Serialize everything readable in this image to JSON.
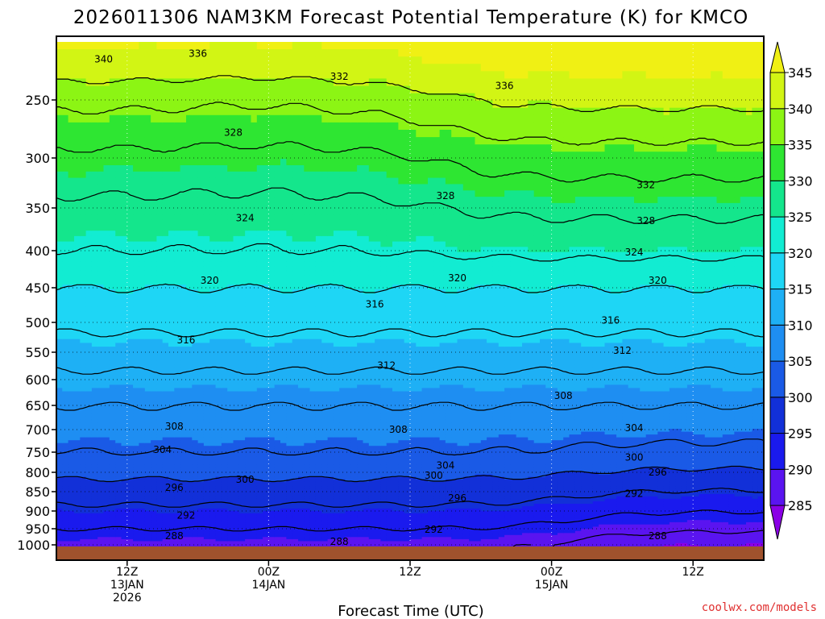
{
  "chart_data": {
    "type": "contour-timeheight",
    "title": "2026011306 NAM3KM Forecast Potential Temperature (K) for KMCO",
    "xlabel": "Forecast Time (UTC)",
    "ylabel": "",
    "y_ticks": [
      250,
      300,
      350,
      400,
      450,
      500,
      550,
      600,
      650,
      700,
      750,
      800,
      850,
      900,
      950,
      1000
    ],
    "x_ticks": [
      {
        "hour": 6,
        "label1": "12Z",
        "label2": "13JAN",
        "label3": "2026"
      },
      {
        "hour": 18,
        "label1": "00Z",
        "label2": "14JAN",
        "label3": ""
      },
      {
        "hour": 30,
        "label1": "12Z",
        "label2": "",
        "label3": ""
      },
      {
        "hour": 42,
        "label1": "00Z",
        "label2": "15JAN",
        "label3": ""
      },
      {
        "hour": 54,
        "label1": "12Z",
        "label2": "",
        "label3": ""
      }
    ],
    "xlim_hours": [
      0,
      60
    ],
    "ylim_hpa": [
      200,
      1020
    ],
    "colorbar": {
      "levels": [
        285,
        290,
        295,
        300,
        305,
        310,
        315,
        320,
        325,
        330,
        335,
        340,
        345
      ],
      "colors": [
        "#8a00e6",
        "#5a14f0",
        "#1a1aee",
        "#1230d8",
        "#1a5ae6",
        "#1e8ef2",
        "#1eb0f5",
        "#1ed6f5",
        "#12ecd2",
        "#14e68c",
        "#2ee632",
        "#8cf514",
        "#d2f514",
        "#f0f014"
      ]
    },
    "contour_levels": [
      288,
      292,
      296,
      300,
      304,
      308,
      312,
      316,
      320,
      324,
      328,
      332,
      336,
      340
    ],
    "contour_labels": [
      {
        "value": 340,
        "hour": 4,
        "p": 215
      },
      {
        "value": 336,
        "hour": 12,
        "p": 210
      },
      {
        "value": 332,
        "hour": 24,
        "p": 230
      },
      {
        "value": 336,
        "hour": 38,
        "p": 238
      },
      {
        "value": 328,
        "hour": 15,
        "p": 278
      },
      {
        "value": 328,
        "hour": 33,
        "p": 338
      },
      {
        "value": 332,
        "hour": 50,
        "p": 327
      },
      {
        "value": 328,
        "hour": 50,
        "p": 365
      },
      {
        "value": 324,
        "hour": 16,
        "p": 362
      },
      {
        "value": 324,
        "hour": 49,
        "p": 402
      },
      {
        "value": 320,
        "hour": 13,
        "p": 440
      },
      {
        "value": 320,
        "hour": 34,
        "p": 437
      },
      {
        "value": 320,
        "hour": 51,
        "p": 440
      },
      {
        "value": 316,
        "hour": 27,
        "p": 474
      },
      {
        "value": 316,
        "hour": 47,
        "p": 497
      },
      {
        "value": 316,
        "hour": 11,
        "p": 530
      },
      {
        "value": 312,
        "hour": 28,
        "p": 574
      },
      {
        "value": 312,
        "hour": 48,
        "p": 547
      },
      {
        "value": 308,
        "hour": 43,
        "p": 631
      },
      {
        "value": 308,
        "hour": 10,
        "p": 693
      },
      {
        "value": 308,
        "hour": 29,
        "p": 700
      },
      {
        "value": 304,
        "hour": 49,
        "p": 697
      },
      {
        "value": 304,
        "hour": 9,
        "p": 745
      },
      {
        "value": 304,
        "hour": 33,
        "p": 783
      },
      {
        "value": 300,
        "hour": 49,
        "p": 763
      },
      {
        "value": 300,
        "hour": 16,
        "p": 819
      },
      {
        "value": 300,
        "hour": 32,
        "p": 808
      },
      {
        "value": 296,
        "hour": 51,
        "p": 800
      },
      {
        "value": 296,
        "hour": 10,
        "p": 840
      },
      {
        "value": 296,
        "hour": 34,
        "p": 867
      },
      {
        "value": 292,
        "hour": 49,
        "p": 855
      },
      {
        "value": 292,
        "hour": 11,
        "p": 913
      },
      {
        "value": 292,
        "hour": 32,
        "p": 953
      },
      {
        "value": 288,
        "hour": 10,
        "p": 972
      },
      {
        "value": 288,
        "hour": 24,
        "p": 990
      },
      {
        "value": 288,
        "hour": 51,
        "p": 972
      }
    ],
    "ground_color": "#a0522d"
  },
  "credit": "coolwx.com/models"
}
